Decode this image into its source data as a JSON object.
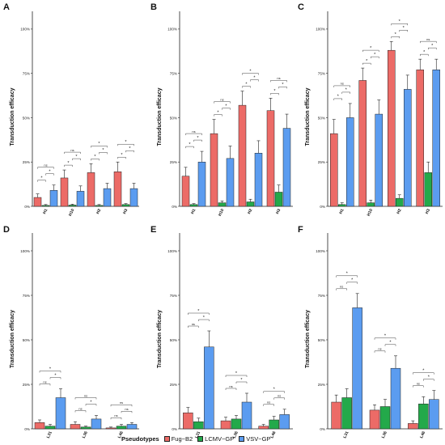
{
  "colors": {
    "fug_b2": "#ec6b67",
    "lcmv_gp": "#23a94a",
    "vsv_gp": "#5b9cf0"
  },
  "legend": {
    "title": "Pseudotypes",
    "items": [
      {
        "label": "Fug−B2",
        "color": "#ec6b67"
      },
      {
        "label": "LCMV−GP",
        "color": "#23a94a"
      },
      {
        "label": "VSV−GP",
        "color": "#5b9cf0"
      }
    ]
  },
  "chart_data": [
    {
      "panel": "A",
      "type": "bar",
      "ylabel": "Transduction efficacy",
      "yticks": [
        "0%",
        "25%",
        "50%",
        "75%",
        "100%"
      ],
      "ylim": [
        0,
        110
      ],
      "categories": [
        "H1",
        "H10",
        "H2",
        "H3"
      ],
      "series": [
        {
          "name": "Fug−B2",
          "values": [
            5,
            16,
            19,
            19.5
          ],
          "errors": [
            2,
            4.5,
            5,
            5.5
          ]
        },
        {
          "name": "LCMV−GP",
          "values": [
            0.5,
            0.7,
            0.5,
            1
          ],
          "errors": [
            0.5,
            0.5,
            0.5,
            0.5
          ]
        },
        {
          "name": "VSV−GP",
          "values": [
            9,
            8.5,
            10,
            10
          ],
          "errors": [
            3,
            3,
            3,
            3
          ]
        }
      ],
      "brackets": [
        {
          "cat": 0,
          "a": 0,
          "b": 1,
          "level": 0,
          "label": "*"
        },
        {
          "cat": 0,
          "a": 1,
          "b": 2,
          "level": 1,
          "label": "*"
        },
        {
          "cat": 0,
          "a": 0,
          "b": 2,
          "level": 2,
          "label": "ns"
        },
        {
          "cat": 1,
          "a": 0,
          "b": 1,
          "level": 0,
          "label": "*"
        },
        {
          "cat": 1,
          "a": 1,
          "b": 2,
          "level": 1,
          "label": "*"
        },
        {
          "cat": 1,
          "a": 0,
          "b": 2,
          "level": 2,
          "label": "ns"
        },
        {
          "cat": 2,
          "a": 0,
          "b": 1,
          "level": 0,
          "label": "*"
        },
        {
          "cat": 2,
          "a": 1,
          "b": 2,
          "level": 1,
          "label": "*"
        },
        {
          "cat": 2,
          "a": 0,
          "b": 2,
          "level": 2,
          "label": "*"
        },
        {
          "cat": 3,
          "a": 0,
          "b": 1,
          "level": 0,
          "label": "*"
        },
        {
          "cat": 3,
          "a": 1,
          "b": 2,
          "level": 1,
          "label": "*"
        },
        {
          "cat": 3,
          "a": 0,
          "b": 2,
          "level": 2,
          "label": "*"
        }
      ]
    },
    {
      "panel": "B",
      "type": "bar",
      "ylabel": "Transduction efficacy",
      "yticks": [
        "0%",
        "25%",
        "50%",
        "75%",
        "100%"
      ],
      "ylim": [
        0,
        110
      ],
      "categories": [
        "H1",
        "H10",
        "H2",
        "H3"
      ],
      "series": [
        {
          "name": "Fug−B2",
          "values": [
            17,
            41,
            57,
            54
          ],
          "errors": [
            5,
            8,
            8,
            7
          ]
        },
        {
          "name": "LCMV−GP",
          "values": [
            1,
            2,
            2.5,
            8
          ],
          "errors": [
            0.5,
            1,
            1.5,
            4
          ]
        },
        {
          "name": "VSV−GP",
          "values": [
            25,
            27,
            30,
            44
          ],
          "errors": [
            6,
            7,
            7,
            8
          ]
        }
      ],
      "brackets": [
        {
          "cat": 0,
          "a": 0,
          "b": 1,
          "level": 0,
          "label": "*"
        },
        {
          "cat": 0,
          "a": 1,
          "b": 2,
          "level": 1,
          "label": "*"
        },
        {
          "cat": 0,
          "a": 0,
          "b": 2,
          "level": 2,
          "label": "ns"
        },
        {
          "cat": 1,
          "a": 0,
          "b": 1,
          "level": 0,
          "label": "*"
        },
        {
          "cat": 1,
          "a": 1,
          "b": 2,
          "level": 1,
          "label": "*"
        },
        {
          "cat": 1,
          "a": 0,
          "b": 2,
          "level": 2,
          "label": "ns"
        },
        {
          "cat": 2,
          "a": 0,
          "b": 1,
          "level": 0,
          "label": "*"
        },
        {
          "cat": 2,
          "a": 1,
          "b": 2,
          "level": 1,
          "label": "*"
        },
        {
          "cat": 2,
          "a": 0,
          "b": 2,
          "level": 2,
          "label": "*"
        },
        {
          "cat": 3,
          "a": 0,
          "b": 1,
          "level": 0,
          "label": "*"
        },
        {
          "cat": 3,
          "a": 1,
          "b": 2,
          "level": 1,
          "label": "*"
        },
        {
          "cat": 3,
          "a": 0,
          "b": 2,
          "level": 2,
          "label": "ns"
        }
      ]
    },
    {
      "panel": "C",
      "type": "bar",
      "ylabel": "Transduction efficacy",
      "yticks": [
        "0%",
        "25%",
        "50%",
        "75%",
        "100%"
      ],
      "ylim": [
        0,
        110
      ],
      "categories": [
        "H1",
        "H10",
        "H2",
        "H3"
      ],
      "series": [
        {
          "name": "Fug−B2",
          "values": [
            41,
            71,
            88,
            77
          ],
          "errors": [
            8,
            7,
            5,
            6
          ]
        },
        {
          "name": "LCMV−GP",
          "values": [
            1,
            2,
            4.5,
            19
          ],
          "errors": [
            1,
            1.5,
            2,
            6
          ]
        },
        {
          "name": "VSV−GP",
          "values": [
            50,
            52,
            66,
            77
          ],
          "errors": [
            8,
            8,
            8,
            6
          ]
        }
      ],
      "brackets": [
        {
          "cat": 0,
          "a": 0,
          "b": 1,
          "level": 0,
          "label": "*"
        },
        {
          "cat": 0,
          "a": 1,
          "b": 2,
          "level": 1,
          "label": "*"
        },
        {
          "cat": 0,
          "a": 0,
          "b": 2,
          "level": 2,
          "label": "ns"
        },
        {
          "cat": 1,
          "a": 0,
          "b": 1,
          "level": 0,
          "label": "*"
        },
        {
          "cat": 1,
          "a": 1,
          "b": 2,
          "level": 1,
          "label": "*"
        },
        {
          "cat": 1,
          "a": 0,
          "b": 2,
          "level": 2,
          "label": "*"
        },
        {
          "cat": 2,
          "a": 0,
          "b": 1,
          "level": 0,
          "label": "*"
        },
        {
          "cat": 2,
          "a": 1,
          "b": 2,
          "level": 1,
          "label": "*"
        },
        {
          "cat": 2,
          "a": 0,
          "b": 2,
          "level": 2,
          "label": "*"
        },
        {
          "cat": 3,
          "a": 0,
          "b": 1,
          "level": 0,
          "label": "*"
        },
        {
          "cat": 3,
          "a": 1,
          "b": 2,
          "level": 1,
          "label": "*"
        },
        {
          "cat": 3,
          "a": 0,
          "b": 2,
          "level": 2,
          "label": "ns"
        }
      ]
    },
    {
      "panel": "D",
      "type": "bar",
      "ylabel": "Transduction efficacy",
      "yticks": [
        "0%",
        "25%",
        "50%",
        "75%",
        "100%"
      ],
      "ylim": [
        0,
        110
      ],
      "categories": [
        "L31",
        "L36",
        "L46"
      ],
      "series": [
        {
          "name": "Fug−B2",
          "values": [
            3.5,
            2.5,
            0.5
          ],
          "errors": [
            1.5,
            1.5,
            0.5
          ]
        },
        {
          "name": "LCMV−GP",
          "values": [
            1.5,
            1,
            1.5
          ],
          "errors": [
            1,
            0.5,
            1
          ]
        },
        {
          "name": "VSV−GP",
          "values": [
            17.5,
            5.5,
            2.5
          ],
          "errors": [
            5,
            2,
            1
          ]
        }
      ],
      "brackets": [
        {
          "cat": 0,
          "a": 0,
          "b": 1,
          "level": 0,
          "label": "ns"
        },
        {
          "cat": 0,
          "a": 1,
          "b": 2,
          "level": 1,
          "label": "*"
        },
        {
          "cat": 0,
          "a": 0,
          "b": 2,
          "level": 2,
          "label": "*"
        },
        {
          "cat": 1,
          "a": 0,
          "b": 1,
          "level": 0,
          "label": "ns"
        },
        {
          "cat": 1,
          "a": 1,
          "b": 2,
          "level": 1,
          "label": "*"
        },
        {
          "cat": 1,
          "a": 0,
          "b": 2,
          "level": 2,
          "label": "ns"
        },
        {
          "cat": 2,
          "a": 0,
          "b": 1,
          "level": 0,
          "label": "ns"
        },
        {
          "cat": 2,
          "a": 1,
          "b": 2,
          "level": 1,
          "label": "ns"
        },
        {
          "cat": 2,
          "a": 0,
          "b": 2,
          "level": 2,
          "label": "ns"
        }
      ]
    },
    {
      "panel": "E",
      "type": "bar",
      "ylabel": "Transduction efficacy",
      "yticks": [
        "0%",
        "25%",
        "50%",
        "75%",
        "100%"
      ],
      "ylim": [
        0,
        110
      ],
      "categories": [
        "L31",
        "L36",
        "L46"
      ],
      "series": [
        {
          "name": "Fug−B2",
          "values": [
            9,
            4.5,
            1.5
          ],
          "errors": [
            3,
            2,
            1
          ]
        },
        {
          "name": "LCMV−GP",
          "values": [
            4,
            5.5,
            5
          ],
          "errors": [
            2,
            2,
            2
          ]
        },
        {
          "name": "VSV−GP",
          "values": [
            46,
            15,
            8
          ],
          "errors": [
            9,
            5,
            3
          ]
        }
      ],
      "brackets": [
        {
          "cat": 0,
          "a": 0,
          "b": 1,
          "level": 0,
          "label": "ns"
        },
        {
          "cat": 0,
          "a": 1,
          "b": 2,
          "level": 1,
          "label": "*"
        },
        {
          "cat": 0,
          "a": 0,
          "b": 2,
          "level": 2,
          "label": "*"
        },
        {
          "cat": 1,
          "a": 0,
          "b": 1,
          "level": 0,
          "label": "ns"
        },
        {
          "cat": 1,
          "a": 1,
          "b": 2,
          "level": 1,
          "label": "*"
        },
        {
          "cat": 1,
          "a": 0,
          "b": 2,
          "level": 2,
          "label": "*"
        },
        {
          "cat": 2,
          "a": 0,
          "b": 1,
          "level": 0,
          "label": "ns"
        },
        {
          "cat": 2,
          "a": 1,
          "b": 2,
          "level": 1,
          "label": "ns"
        },
        {
          "cat": 2,
          "a": 0,
          "b": 2,
          "level": 2,
          "label": "*"
        }
      ]
    },
    {
      "panel": "F",
      "type": "bar",
      "ylabel": "Transduction efficacy",
      "yticks": [
        "0%",
        "25%",
        "50%",
        "75%",
        "100%"
      ],
      "ylim": [
        0,
        110
      ],
      "categories": [
        "L31",
        "L36",
        "L46"
      ],
      "series": [
        {
          "name": "Fug−B2",
          "values": [
            15,
            10.5,
            3
          ],
          "errors": [
            4,
            3,
            1.5
          ]
        },
        {
          "name": "LCMV−GP",
          "values": [
            17.5,
            12.5,
            14
          ],
          "errors": [
            5,
            4,
            4
          ]
        },
        {
          "name": "VSV−GP",
          "values": [
            68,
            34,
            16.5
          ],
          "errors": [
            8,
            7,
            5
          ]
        }
      ],
      "brackets": [
        {
          "cat": 0,
          "a": 0,
          "b": 1,
          "level": 0,
          "label": "ns"
        },
        {
          "cat": 0,
          "a": 1,
          "b": 2,
          "level": 1,
          "label": "*"
        },
        {
          "cat": 0,
          "a": 0,
          "b": 2,
          "level": 2,
          "label": "*"
        },
        {
          "cat": 1,
          "a": 0,
          "b": 1,
          "level": 0,
          "label": "ns"
        },
        {
          "cat": 1,
          "a": 1,
          "b": 2,
          "level": 1,
          "label": "*"
        },
        {
          "cat": 1,
          "a": 0,
          "b": 2,
          "level": 2,
          "label": "*"
        },
        {
          "cat": 2,
          "a": 0,
          "b": 1,
          "level": 0,
          "label": "ns"
        },
        {
          "cat": 2,
          "a": 1,
          "b": 2,
          "level": 1,
          "label": "*"
        },
        {
          "cat": 2,
          "a": 0,
          "b": 2,
          "level": 2,
          "label": "*"
        }
      ]
    }
  ]
}
